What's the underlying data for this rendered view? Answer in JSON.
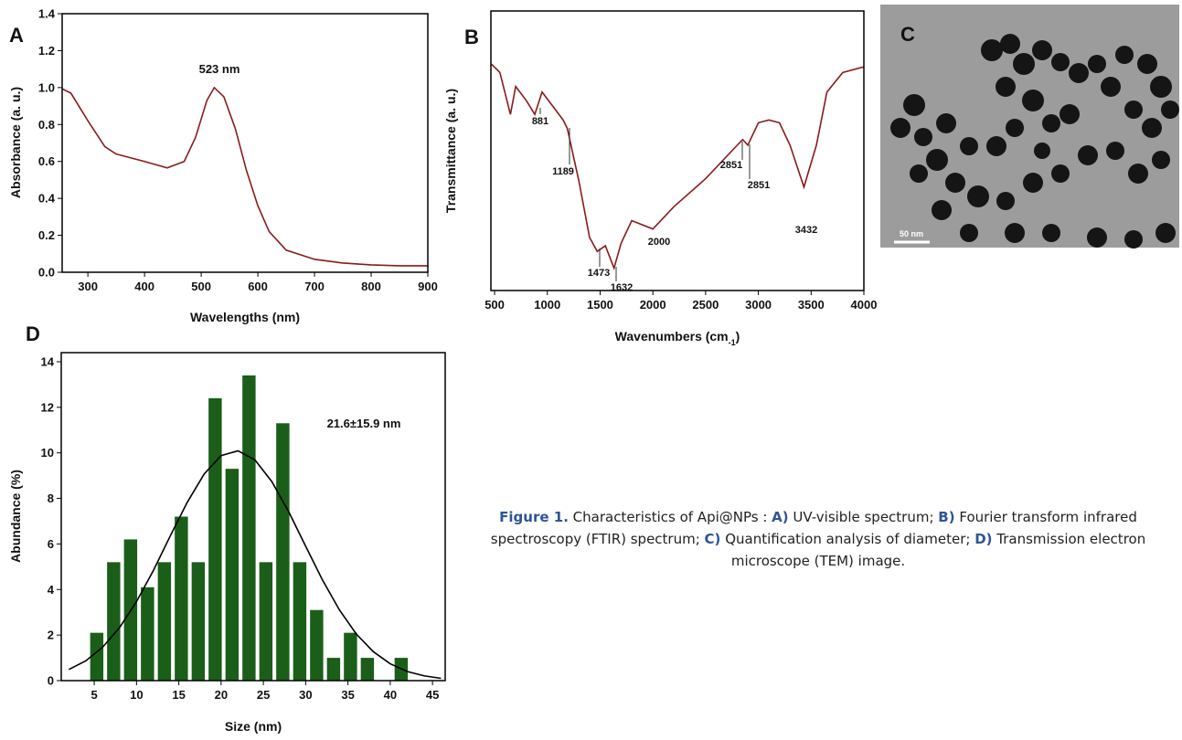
{
  "chart_data": [
    {
      "type": "line",
      "panel_label": "A",
      "x_label": "Wavelengths (nm)",
      "y_label": "Absorbance (a. u.)",
      "color": "#8b1a1a",
      "x": [
        250,
        270,
        300,
        330,
        350,
        400,
        440,
        470,
        490,
        510,
        523,
        540,
        560,
        580,
        600,
        620,
        650,
        700,
        750,
        800,
        850,
        900
      ],
      "values": [
        1.0,
        0.97,
        0.82,
        0.68,
        0.64,
        0.6,
        0.565,
        0.6,
        0.73,
        0.93,
        1.0,
        0.95,
        0.78,
        0.55,
        0.36,
        0.22,
        0.12,
        0.07,
        0.05,
        0.04,
        0.035,
        0.035
      ],
      "xlim": [
        254.6,
        900
      ],
      "xticks": [
        300,
        400,
        500,
        600,
        700,
        800,
        900
      ],
      "ylim": [
        0,
        1.4
      ],
      "yticks": [
        {
          "value": 0,
          "label": "0.0"
        },
        0.2,
        0.4,
        0.6,
        0.8,
        {
          "value": 1,
          "label": "1.0"
        },
        1.2,
        1.4
      ],
      "annotations": [
        "523 nm"
      ]
    },
    {
      "type": "line",
      "panel_label": "B",
      "x_label": {
        "text": "Wavenumbers (cm",
        "sub": "-1",
        "end": ")"
      },
      "y_label": "Transmittance (a. u.)",
      "color": "#8b1a1a",
      "x": [
        470,
        550,
        650,
        700,
        800,
        881,
        950,
        1050,
        1150,
        1189,
        1300,
        1400,
        1473,
        1550,
        1632,
        1700,
        1800,
        2000,
        2200,
        2500,
        2800,
        2851,
        2900,
        3000,
        3100,
        3200,
        3300,
        3432,
        3550,
        3650,
        3800,
        4000
      ],
      "values": [
        81,
        78,
        63,
        73,
        68,
        63,
        71,
        66,
        61,
        58,
        39,
        19,
        14,
        16,
        8,
        17,
        25,
        22,
        30,
        40,
        52,
        54,
        52,
        60,
        61,
        60,
        52,
        37,
        52,
        71,
        78,
        80
      ],
      "xlim": [
        465,
        4000
      ],
      "xticks": [
        500,
        1000,
        1500,
        2000,
        2500,
        3000,
        3500,
        4000
      ],
      "ylim": [
        0,
        100
      ],
      "annotations": [
        "881",
        "1189",
        "1473",
        "1632",
        "2000",
        "2851",
        "2851",
        "3432"
      ]
    },
    {
      "type": "histogram",
      "panel_label": "D",
      "x_label": "Size (nm)",
      "y_label": "Abundance (%)",
      "color": "#1a5e1a",
      "bins": [
        4.3,
        6.3,
        8.3,
        10.3,
        12.3,
        14.3,
        16.3,
        18.3,
        20.3,
        22.3,
        24.3,
        26.3,
        28.3,
        30.3,
        32.3,
        34.3,
        36.3,
        38.3,
        40.3,
        42.3
      ],
      "values": [
        2.1,
        5.2,
        6.2,
        4.1,
        5.2,
        7.2,
        5.2,
        12.4,
        9.3,
        13.4,
        5.2,
        11.3,
        5.2,
        3.1,
        1.0,
        2.1,
        1.0,
        0,
        1.0
      ],
      "fit_color": "#000000",
      "fit_x": [
        2,
        4,
        6,
        8,
        10,
        12,
        14,
        16,
        18,
        20,
        22,
        24,
        26,
        28,
        30,
        32,
        34,
        36,
        38,
        40,
        42,
        44,
        46
      ],
      "fit_values": [
        0.49,
        0.87,
        1.47,
        2.33,
        3.47,
        4.84,
        6.36,
        7.83,
        9.07,
        9.88,
        10.09,
        9.69,
        8.74,
        7.41,
        5.9,
        4.41,
        3.1,
        2.04,
        1.27,
        0.74,
        0.4,
        0.21,
        0.1
      ],
      "xlim": [
        1.1,
        46.5
      ],
      "xticks": [
        5,
        10,
        15,
        20,
        25,
        30,
        35,
        40,
        45
      ],
      "ylim": [
        0,
        14.4
      ],
      "yticks": [
        0,
        2,
        4,
        6,
        8,
        10,
        12,
        14
      ],
      "annotations": [
        "21.6±15.9 nm"
      ]
    }
  ],
  "image": {
    "panel_label": "C",
    "scale_bar": "50 nm"
  },
  "caption": [
    {
      "text": "Figure 1.",
      "strong": true
    },
    {
      "text": " Characteristics of Api@NPs : "
    },
    {
      "text": "A)",
      "strong": true
    },
    {
      "text": " UV-visible spectrum; "
    },
    {
      "text": "B)",
      "strong": true
    },
    {
      "text": " Fourier transform infrared spectroscopy (FTIR) spectrum; "
    },
    {
      "text": "C)",
      "strong": true
    },
    {
      "text": " Quantification analysis of diameter; "
    },
    {
      "text": "D)",
      "strong": true
    },
    {
      "text": " Transmission electron microscope (TEM) image."
    }
  ]
}
